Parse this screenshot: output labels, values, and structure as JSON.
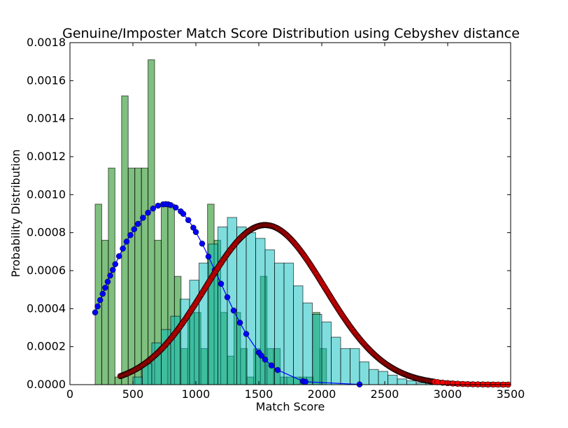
{
  "chart_data": {
    "type": "bar",
    "title": "Genuine/Imposter Match Score Distribution using Cebyshev distance",
    "xlabel": "Match Score",
    "ylabel": "Probability Distribution",
    "xlim": [
      0,
      3500
    ],
    "ylim": [
      0,
      0.0018
    ],
    "xticks": [
      0,
      500,
      1000,
      1500,
      2000,
      2500,
      3000,
      3500
    ],
    "xtick_labels": [
      "0",
      "500",
      "1000",
      "1500",
      "2000",
      "2500",
      "3000",
      "3500"
    ],
    "yticks": [
      0,
      0.0002,
      0.0004,
      0.0006,
      0.0008,
      0.001,
      0.0012,
      0.0014,
      0.0016,
      0.0018
    ],
    "ytick_labels": [
      "0.0000",
      "0.0002",
      "0.0004",
      "0.0006",
      "0.0008",
      "0.0010",
      "0.0012",
      "0.0014",
      "0.0016",
      "0.0018"
    ],
    "histograms": [
      {
        "name": "genuine-histogram",
        "color": "#008000",
        "edge_color": "#000000",
        "alpha": 0.5,
        "bin_start": 200,
        "bin_width": 52.5,
        "values": [
          0.00095,
          0.00076,
          0.00114,
          4e-05,
          0.00152,
          0.00114,
          0.00114,
          0.00114,
          0.00171,
          0.00076,
          0.00095,
          0.00095,
          0.00057,
          0.00019,
          0.00038,
          0.00038,
          0.00019,
          0.00095,
          0.00076,
          0.00038,
          0.00015,
          0.00038,
          0.00019,
          4e-05,
          0.00019,
          0.00057,
          0.00019,
          0.00019,
          4e-05,
          4e-05,
          4e-05,
          4e-05,
          4e-05,
          0.00038,
          0.00019
        ]
      },
      {
        "name": "imposter-histogram",
        "color": "#00bbbb",
        "edge_color": "#000000",
        "alpha": 0.5,
        "bin_start": 500,
        "bin_width": 75,
        "values": [
          4e-05,
          0.00011,
          0.00022,
          0.00029,
          0.00036,
          0.00045,
          0.00055,
          0.00064,
          0.00074,
          0.00083,
          0.00088,
          0.00083,
          0.0008,
          0.00077,
          0.00071,
          0.00064,
          0.00064,
          0.00052,
          0.00043,
          0.00037,
          0.00033,
          0.00025,
          0.00019,
          0.00019,
          0.00012,
          8e-05,
          7e-05,
          5e-05,
          3e-05,
          2e-05,
          1e-05,
          1e-05
        ]
      }
    ],
    "series": [
      {
        "name": "genuine-fit-curve",
        "type": "line",
        "color": "#0000ff",
        "marker": "circle",
        "x": [
          200,
          220,
          240,
          260,
          280,
          300,
          320,
          340,
          360,
          390,
          420,
          450,
          480,
          510,
          540,
          580,
          620,
          660,
          700,
          740,
          760,
          780,
          800,
          840,
          880,
          900,
          940,
          980,
          1000,
          1050,
          1100,
          1150,
          1200,
          1250,
          1300,
          1350,
          1400,
          1500,
          1520,
          1550,
          1600,
          1650,
          1850,
          1870,
          2300
        ],
        "y": [
          0.00038,
          0.000412,
          0.000445,
          0.000478,
          0.00051,
          0.000542,
          0.000574,
          0.000604,
          0.000634,
          0.000676,
          0.000716,
          0.000753,
          0.000787,
          0.000818,
          0.000846,
          0.000878,
          0.000905,
          0.000927,
          0.000942,
          0.000949,
          0.00095,
          0.000949,
          0.000945,
          0.000932,
          0.000912,
          0.000899,
          0.000866,
          0.000826,
          0.000803,
          0.000742,
          0.000674,
          0.000603,
          0.000531,
          0.00046,
          0.00039,
          0.000326,
          0.000267,
          0.000169,
          0.000153,
          0.000132,
          0.000101,
          7.7e-05,
          1.8e-05,
          1.5e-05,
          1e-06
        ]
      },
      {
        "name": "imposter-fit-curve",
        "type": "line",
        "color": "#8b0000",
        "marker": "circle",
        "mean": 1550,
        "std": 475,
        "peak": 0.00084,
        "x_start": 400,
        "x_end": 3500
      }
    ]
  }
}
